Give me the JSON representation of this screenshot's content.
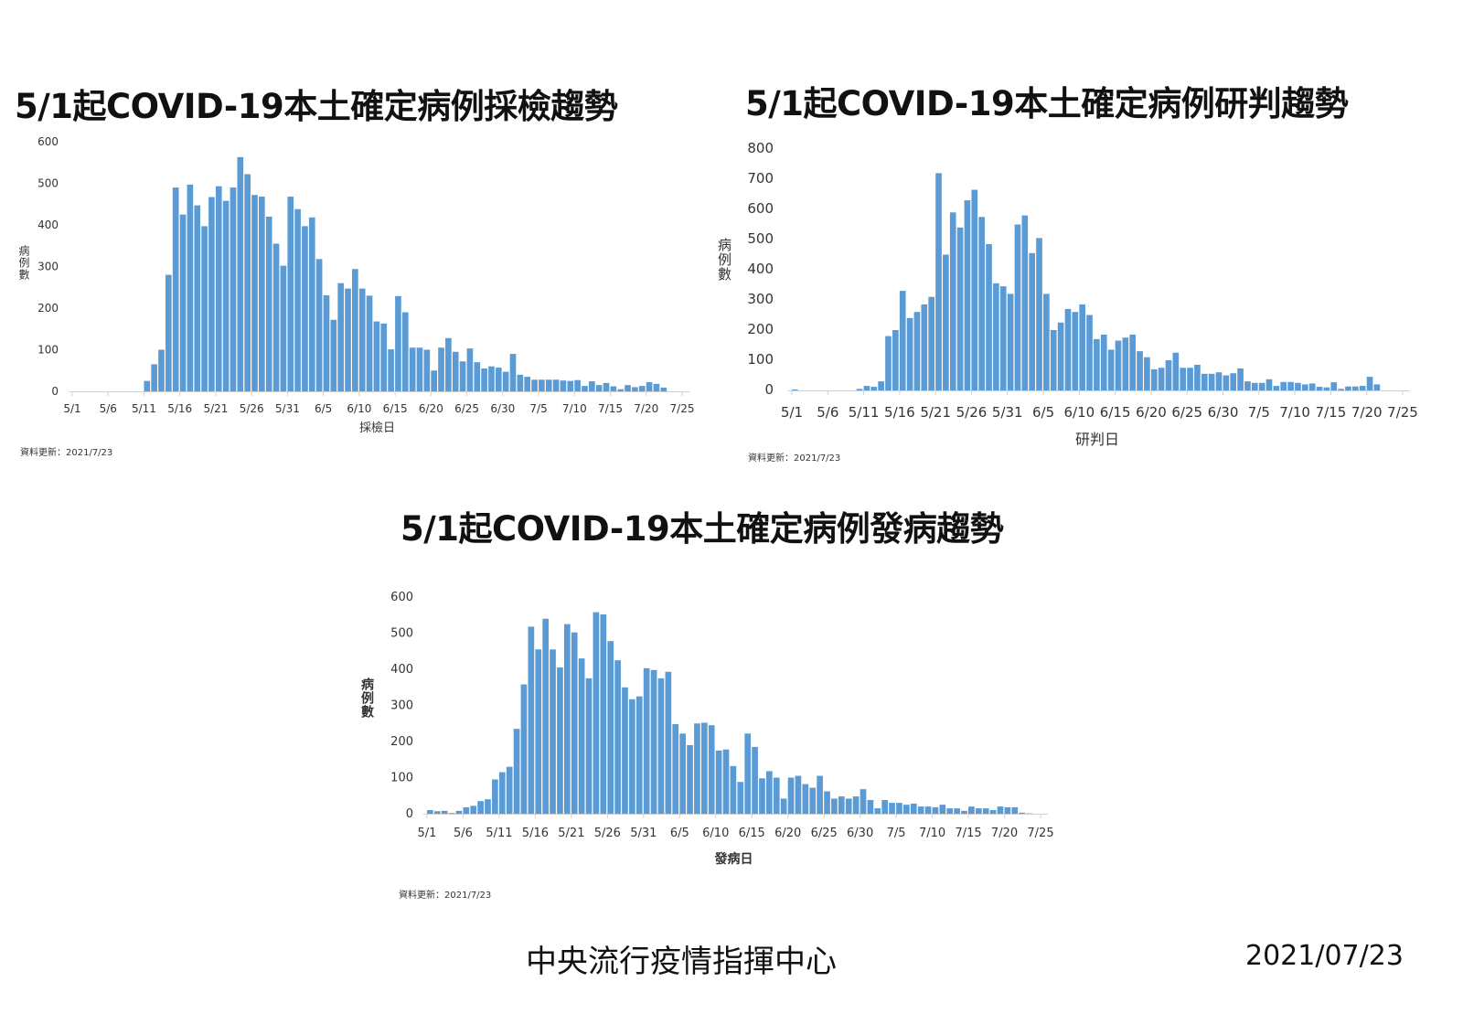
{
  "colors": {
    "bar": "#5b9bd5",
    "axis": "#d0d0d0",
    "text": "#333333"
  },
  "footer": {
    "organization": "中央流行疫情指揮中心",
    "date": "2021/07/23"
  },
  "chart_data": [
    {
      "type": "bar",
      "title": "5/1起COVID-19本土確定病例採檢趨勢",
      "xlabel": "採檢日",
      "ylabel": "病例數",
      "update_note": "資料更新：2021/7/23",
      "ylim": [
        0,
        600
      ],
      "yticks": [
        0,
        100,
        200,
        300,
        400,
        500,
        600
      ],
      "xticks": [
        "5/1",
        "5/6",
        "5/11",
        "5/16",
        "5/21",
        "5/26",
        "5/31",
        "6/5",
        "6/10",
        "6/15",
        "6/20",
        "6/25",
        "6/30",
        "7/5",
        "7/10",
        "7/15",
        "7/20",
        "7/25"
      ],
      "grid": false,
      "categories": [
        "5/11",
        "5/12",
        "5/13",
        "5/14",
        "5/15",
        "5/16",
        "5/17",
        "5/18",
        "5/19",
        "5/20",
        "5/21",
        "5/22",
        "5/23",
        "5/24",
        "5/25",
        "5/26",
        "5/27",
        "5/28",
        "5/29",
        "5/30",
        "5/31",
        "6/1",
        "6/2",
        "6/3",
        "6/4",
        "6/5",
        "6/6",
        "6/7",
        "6/8",
        "6/9",
        "6/10",
        "6/11",
        "6/12",
        "6/13",
        "6/14",
        "6/15",
        "6/16",
        "6/17",
        "6/18",
        "6/19",
        "6/20",
        "6/21",
        "6/22",
        "6/23",
        "6/24",
        "6/25",
        "6/26",
        "6/27",
        "6/28",
        "6/29",
        "6/30",
        "7/1",
        "7/2",
        "7/3",
        "7/4",
        "7/5",
        "7/6",
        "7/7",
        "7/8",
        "7/9",
        "7/10",
        "7/11",
        "7/12",
        "7/13",
        "7/14",
        "7/15",
        "7/16",
        "7/17",
        "7/18",
        "7/19",
        "7/20",
        "7/21",
        "7/22"
      ],
      "values": [
        25,
        65,
        100,
        280,
        490,
        425,
        497,
        447,
        397,
        467,
        493,
        458,
        490,
        563,
        522,
        472,
        468,
        420,
        355,
        302,
        468,
        438,
        397,
        418,
        318,
        231,
        172,
        260,
        247,
        294,
        247,
        230,
        168,
        163,
        101,
        229,
        190,
        105,
        105,
        100,
        50,
        105,
        128,
        95,
        72,
        103,
        70,
        55,
        60,
        57,
        47,
        90,
        40,
        35,
        28,
        28,
        28,
        28,
        26,
        25,
        27,
        13,
        24,
        15,
        20,
        12,
        5,
        15,
        10,
        13,
        22,
        18,
        9
      ]
    },
    {
      "type": "bar",
      "title": "5/1起COVID-19本土確定病例研判趨勢",
      "xlabel": "研判日",
      "ylabel": "病例數",
      "update_note": "資料更新：2021/7/23",
      "ylim": [
        0,
        800
      ],
      "yticks": [
        0,
        100,
        200,
        300,
        400,
        500,
        600,
        700,
        800
      ],
      "xticks": [
        "5/1",
        "5/6",
        "5/11",
        "5/16",
        "5/21",
        "5/26",
        "5/31",
        "6/5",
        "6/10",
        "6/15",
        "6/20",
        "6/25",
        "6/30",
        "7/5",
        "7/10",
        "7/15",
        "7/20",
        "7/25"
      ],
      "grid": false,
      "categories": [
        "5/1",
        "5/2",
        "5/3",
        "5/4",
        "5/5",
        "5/6",
        "5/7",
        "5/8",
        "5/9",
        "5/10",
        "5/11",
        "5/12",
        "5/13",
        "5/14",
        "5/15",
        "5/16",
        "5/17",
        "5/18",
        "5/19",
        "5/20",
        "5/21",
        "5/22",
        "5/23",
        "5/24",
        "5/25",
        "5/26",
        "5/27",
        "5/28",
        "5/29",
        "5/30",
        "5/31",
        "6/1",
        "6/2",
        "6/3",
        "6/4",
        "6/5",
        "6/6",
        "6/7",
        "6/8",
        "6/9",
        "6/10",
        "6/11",
        "6/12",
        "6/13",
        "6/14",
        "6/15",
        "6/16",
        "6/17",
        "6/18",
        "6/19",
        "6/20",
        "6/21",
        "6/22",
        "6/23",
        "6/24",
        "6/25",
        "6/26",
        "6/27",
        "6/28",
        "6/29",
        "6/30",
        "7/1",
        "7/2",
        "7/3",
        "7/4",
        "7/5",
        "7/6",
        "7/7",
        "7/8",
        "7/9",
        "7/10",
        "7/11",
        "7/12",
        "7/13",
        "7/14",
        "7/15",
        "7/16",
        "7/17",
        "7/18",
        "7/19",
        "7/20",
        "7/21"
      ],
      "values": [
        3,
        0,
        0,
        0,
        0,
        0,
        0,
        0,
        0,
        5,
        15,
        12,
        30,
        180,
        200,
        330,
        240,
        260,
        285,
        310,
        720,
        450,
        590,
        540,
        630,
        665,
        575,
        485,
        355,
        345,
        320,
        550,
        580,
        455,
        505,
        320,
        200,
        225,
        270,
        260,
        285,
        250,
        170,
        185,
        135,
        165,
        175,
        185,
        130,
        110,
        70,
        75,
        100,
        125,
        75,
        75,
        85,
        55,
        55,
        60,
        50,
        57,
        73,
        30,
        25,
        25,
        37,
        15,
        28,
        28,
        25,
        20,
        23,
        12,
        10,
        27,
        5,
        13,
        13,
        15,
        45,
        20
      ]
    },
    {
      "type": "bar",
      "title": "5/1起COVID-19本土確定病例發病趨勢",
      "xlabel": "發病日",
      "ylabel": "病例數",
      "update_note": "資料更新：2021/7/23",
      "ylim": [
        0,
        600
      ],
      "yticks": [
        0,
        100,
        200,
        300,
        400,
        500,
        600
      ],
      "xticks": [
        "5/1",
        "5/6",
        "5/11",
        "5/16",
        "5/21",
        "5/26",
        "5/31",
        "6/5",
        "6/10",
        "6/15",
        "6/20",
        "6/25",
        "6/30",
        "7/5",
        "7/10",
        "7/15",
        "7/20",
        "7/25"
      ],
      "grid": false,
      "categories": [
        "5/1",
        "5/2",
        "5/3",
        "5/4",
        "5/5",
        "5/6",
        "5/7",
        "5/8",
        "5/9",
        "5/10",
        "5/11",
        "5/12",
        "5/13",
        "5/14",
        "5/15",
        "5/16",
        "5/17",
        "5/18",
        "5/19",
        "5/20",
        "5/21",
        "5/22",
        "5/23",
        "5/24",
        "5/25",
        "5/26",
        "5/27",
        "5/28",
        "5/29",
        "5/30",
        "5/31",
        "6/1",
        "6/2",
        "6/3",
        "6/4",
        "6/5",
        "6/6",
        "6/7",
        "6/8",
        "6/9",
        "6/10",
        "6/11",
        "6/12",
        "6/13",
        "6/14",
        "6/15",
        "6/16",
        "6/17",
        "6/18",
        "6/19",
        "6/20",
        "6/21",
        "6/22",
        "6/23",
        "6/24",
        "6/25",
        "6/26",
        "6/27",
        "6/28",
        "6/29",
        "6/30",
        "7/1",
        "7/2",
        "7/3",
        "7/4",
        "7/5",
        "7/6",
        "7/7",
        "7/8",
        "7/9",
        "7/10",
        "7/11",
        "7/12",
        "7/13",
        "7/14",
        "7/15",
        "7/16",
        "7/17",
        "7/18",
        "7/19",
        "7/20",
        "7/21",
        "7/22",
        "7/23"
      ],
      "values": [
        10,
        7,
        8,
        2,
        8,
        18,
        22,
        35,
        40,
        95,
        115,
        130,
        235,
        358,
        518,
        455,
        540,
        455,
        405,
        525,
        502,
        430,
        375,
        558,
        552,
        478,
        425,
        350,
        317,
        325,
        403,
        398,
        375,
        393,
        248,
        222,
        190,
        250,
        252,
        245,
        175,
        178,
        132,
        88,
        222,
        185,
        98,
        118,
        100,
        42,
        100,
        105,
        82,
        72,
        105,
        62,
        42,
        48,
        42,
        48,
        68,
        38,
        15,
        38,
        30,
        30,
        25,
        28,
        20,
        20,
        18,
        25,
        15,
        15,
        8,
        20,
        15,
        15,
        10,
        20,
        18,
        18,
        3,
        1
      ]
    }
  ]
}
